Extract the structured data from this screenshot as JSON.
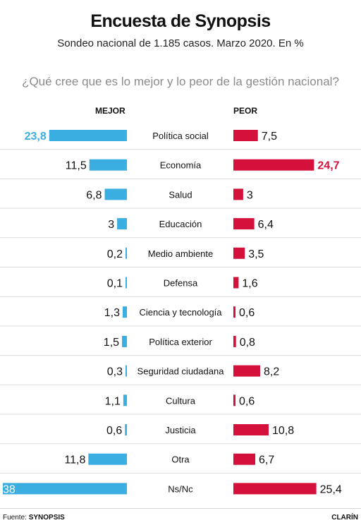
{
  "header": {
    "title": "Encuesta de Synopsis",
    "subtitle": "Sondeo nacional de 1.185 casos. Marzo 2020. En %",
    "question": "¿Qué cree que es lo mejor y lo peor de la gestión nacional?"
  },
  "chart_data": {
    "type": "bar",
    "title": "Encuesta de Synopsis",
    "subtitle": "Sondeo nacional de 1.185 casos. Marzo 2020. En %",
    "categories": [
      "Política social",
      "Economía",
      "Salud",
      "Educación",
      "Medio ambiente",
      "Defensa",
      "Ciencia y tecnología",
      "Política exterior",
      "Seguridad ciudadana",
      "Cultura",
      "Justicia",
      "Otra",
      "Ns/Nc"
    ],
    "series": [
      {
        "name": "MEJOR",
        "color": "#3aaee0",
        "values": [
          23.8,
          11.5,
          6.8,
          3,
          0.2,
          0.1,
          1.3,
          1.5,
          0.3,
          1.1,
          0.6,
          11.8,
          38
        ]
      },
      {
        "name": "PEOR",
        "color": "#d4113a",
        "values": [
          7.5,
          24.7,
          3,
          6.4,
          3.5,
          1.6,
          0.6,
          0.8,
          8.2,
          0.6,
          10.8,
          6.7,
          25.4
        ]
      }
    ],
    "value_labels": {
      "MEJOR": [
        "23,8",
        "11,5",
        "6,8",
        "3",
        "0,2",
        "0,1",
        "1,3",
        "1,5",
        "0,3",
        "1,1",
        "0,6",
        "11,8",
        "38"
      ],
      "PEOR": [
        "7,5",
        "24,7",
        "3",
        "6,4",
        "3,5",
        "1,6",
        "0,6",
        "0,8",
        "8,2",
        "0,6",
        "10,8",
        "6,7",
        "25,4"
      ]
    },
    "highlight": {
      "MEJOR": "Política social",
      "PEOR": "Economía"
    },
    "legend": "top",
    "grid": false
  },
  "footer": {
    "source_label": "Fuente:",
    "source_name": "SYNOPSIS",
    "brand": "CLARÍN"
  }
}
